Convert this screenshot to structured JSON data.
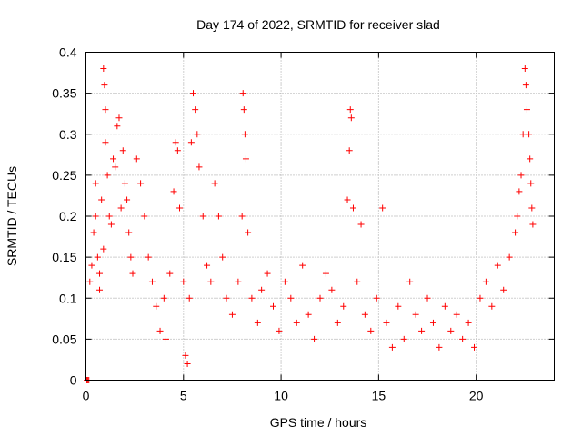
{
  "chart_data": {
    "type": "scatter",
    "title": "Day 174 of 2022, SRMTID for receiver slad",
    "xlabel": "GPS time / hours",
    "ylabel": "SRMTID / TECUs",
    "xlim": [
      0,
      24
    ],
    "ylim": [
      0,
      0.4
    ],
    "x_ticks": [
      0,
      5,
      10,
      15,
      20
    ],
    "x_tick_labels": [
      "0",
      "5",
      "10",
      "15",
      "20"
    ],
    "y_ticks": [
      0,
      0.05,
      0.1,
      0.15,
      0.2,
      0.25,
      0.3,
      0.35,
      0.4
    ],
    "y_tick_labels": [
      "0",
      "0.05",
      "0.1",
      "0.15",
      "0.2",
      "0.25",
      "0.3",
      "0.35",
      "0.4"
    ],
    "grid": true,
    "marker": "+",
    "color": "#ff0000",
    "series": [
      {
        "name": "SRMTID",
        "points": [
          [
            0.05,
            0.0
          ],
          [
            0.1,
            0.0
          ],
          [
            0.15,
            0.0
          ],
          [
            0.2,
            0.12
          ],
          [
            0.3,
            0.14
          ],
          [
            0.4,
            0.18
          ],
          [
            0.5,
            0.2
          ],
          [
            0.5,
            0.24
          ],
          [
            0.6,
            0.15
          ],
          [
            0.7,
            0.13
          ],
          [
            0.7,
            0.11
          ],
          [
            0.8,
            0.22
          ],
          [
            0.9,
            0.16
          ],
          [
            0.9,
            0.38
          ],
          [
            0.95,
            0.36
          ],
          [
            1.0,
            0.33
          ],
          [
            1.0,
            0.29
          ],
          [
            1.1,
            0.25
          ],
          [
            1.2,
            0.2
          ],
          [
            1.3,
            0.19
          ],
          [
            1.4,
            0.27
          ],
          [
            1.5,
            0.26
          ],
          [
            1.6,
            0.31
          ],
          [
            1.7,
            0.32
          ],
          [
            1.8,
            0.21
          ],
          [
            1.9,
            0.28
          ],
          [
            2.0,
            0.24
          ],
          [
            2.1,
            0.22
          ],
          [
            2.2,
            0.18
          ],
          [
            2.3,
            0.15
          ],
          [
            2.4,
            0.13
          ],
          [
            2.6,
            0.27
          ],
          [
            2.8,
            0.24
          ],
          [
            3.0,
            0.2
          ],
          [
            3.2,
            0.15
          ],
          [
            3.4,
            0.12
          ],
          [
            3.6,
            0.09
          ],
          [
            3.8,
            0.06
          ],
          [
            4.0,
            0.1
          ],
          [
            4.1,
            0.05
          ],
          [
            4.3,
            0.13
          ],
          [
            4.5,
            0.23
          ],
          [
            4.6,
            0.29
          ],
          [
            4.7,
            0.28
          ],
          [
            4.8,
            0.21
          ],
          [
            5.0,
            0.12
          ],
          [
            5.1,
            0.03
          ],
          [
            5.2,
            0.02
          ],
          [
            5.3,
            0.1
          ],
          [
            5.4,
            0.29
          ],
          [
            5.5,
            0.35
          ],
          [
            5.6,
            0.33
          ],
          [
            5.7,
            0.3
          ],
          [
            5.8,
            0.26
          ],
          [
            6.0,
            0.2
          ],
          [
            6.2,
            0.14
          ],
          [
            6.4,
            0.12
          ],
          [
            6.6,
            0.24
          ],
          [
            6.8,
            0.2
          ],
          [
            7.0,
            0.15
          ],
          [
            7.2,
            0.1
          ],
          [
            7.5,
            0.08
          ],
          [
            7.8,
            0.12
          ],
          [
            8.0,
            0.2
          ],
          [
            8.05,
            0.35
          ],
          [
            8.1,
            0.33
          ],
          [
            8.15,
            0.3
          ],
          [
            8.2,
            0.27
          ],
          [
            8.3,
            0.18
          ],
          [
            8.5,
            0.1
          ],
          [
            8.8,
            0.07
          ],
          [
            9.0,
            0.11
          ],
          [
            9.3,
            0.13
          ],
          [
            9.6,
            0.09
          ],
          [
            9.9,
            0.06
          ],
          [
            10.2,
            0.12
          ],
          [
            10.5,
            0.1
          ],
          [
            10.8,
            0.07
          ],
          [
            11.1,
            0.14
          ],
          [
            11.4,
            0.08
          ],
          [
            11.7,
            0.05
          ],
          [
            12.0,
            0.1
          ],
          [
            12.3,
            0.13
          ],
          [
            12.6,
            0.11
          ],
          [
            12.9,
            0.07
          ],
          [
            13.2,
            0.09
          ],
          [
            13.4,
            0.22
          ],
          [
            13.5,
            0.28
          ],
          [
            13.55,
            0.33
          ],
          [
            13.6,
            0.32
          ],
          [
            13.7,
            0.21
          ],
          [
            13.9,
            0.12
          ],
          [
            14.1,
            0.19
          ],
          [
            14.3,
            0.08
          ],
          [
            14.6,
            0.06
          ],
          [
            14.9,
            0.1
          ],
          [
            15.2,
            0.21
          ],
          [
            15.4,
            0.07
          ],
          [
            15.7,
            0.04
          ],
          [
            16.0,
            0.09
          ],
          [
            16.3,
            0.05
          ],
          [
            16.6,
            0.12
          ],
          [
            16.9,
            0.08
          ],
          [
            17.2,
            0.06
          ],
          [
            17.5,
            0.1
          ],
          [
            17.8,
            0.07
          ],
          [
            18.1,
            0.04
          ],
          [
            18.4,
            0.09
          ],
          [
            18.7,
            0.06
          ],
          [
            19.0,
            0.08
          ],
          [
            19.3,
            0.05
          ],
          [
            19.6,
            0.07
          ],
          [
            19.9,
            0.04
          ],
          [
            20.2,
            0.1
          ],
          [
            20.5,
            0.12
          ],
          [
            20.8,
            0.09
          ],
          [
            21.1,
            0.14
          ],
          [
            21.4,
            0.11
          ],
          [
            21.7,
            0.15
          ],
          [
            22.0,
            0.18
          ],
          [
            22.1,
            0.2
          ],
          [
            22.2,
            0.23
          ],
          [
            22.3,
            0.25
          ],
          [
            22.4,
            0.3
          ],
          [
            22.5,
            0.38
          ],
          [
            22.55,
            0.36
          ],
          [
            22.6,
            0.33
          ],
          [
            22.7,
            0.3
          ],
          [
            22.75,
            0.27
          ],
          [
            22.8,
            0.24
          ],
          [
            22.85,
            0.21
          ],
          [
            22.9,
            0.19
          ]
        ]
      }
    ]
  }
}
